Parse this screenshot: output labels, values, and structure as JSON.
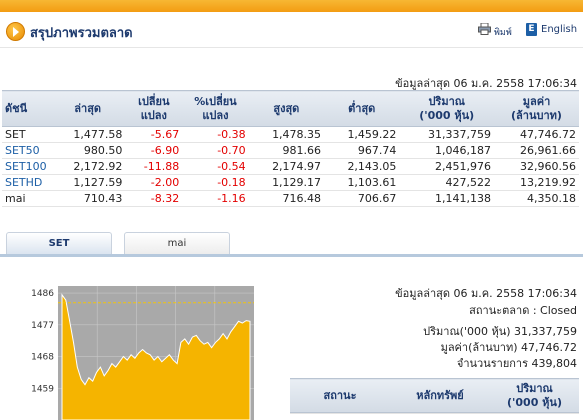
{
  "header": {
    "title": "สรุปภาพรวมตลาด",
    "print_label": "พิมพ์",
    "english_label": "English"
  },
  "summary": {
    "updated": "ข้อมูลล่าสุด 06 ม.ค. 2558 17:06:34",
    "columns": [
      "ดัชนี",
      "ล่าสุด",
      "เปลี่ยน\nแปลง",
      "%เปลี่ยน\nแปลง",
      "สูงสุด",
      "ต่ำสุด",
      "ปริมาณ\n('000 หุ้น)",
      "มูลค่า\n(ล้านบาท)"
    ],
    "rows": [
      {
        "index": "SET",
        "last": "1,477.58",
        "change": "-5.67",
        "pct": "-0.38",
        "high": "1,478.35",
        "low": "1,459.22",
        "volume": "31,337,759",
        "value": "47,746.72"
      },
      {
        "index": "SET50",
        "last": "980.50",
        "change": "-6.90",
        "pct": "-0.70",
        "high": "981.66",
        "low": "967.74",
        "volume": "1,046,187",
        "value": "26,961.66"
      },
      {
        "index": "SET100",
        "last": "2,172.92",
        "change": "-11.88",
        "pct": "-0.54",
        "high": "2,174.97",
        "low": "2,143.05",
        "volume": "2,451,976",
        "value": "32,960.56"
      },
      {
        "index": "SETHD",
        "last": "1,127.59",
        "change": "-2.00",
        "pct": "-0.18",
        "high": "1,129.17",
        "low": "1,103.61",
        "volume": "427,522",
        "value": "13,219.92"
      },
      {
        "index": "mai",
        "last": "710.43",
        "change": "-8.32",
        "pct": "-1.16",
        "high": "716.48",
        "low": "706.67",
        "volume": "1,141,138",
        "value": "4,350.18"
      }
    ]
  },
  "tabs": [
    {
      "label": "SET"
    },
    {
      "label": "mai"
    }
  ],
  "chart_data": {
    "type": "area",
    "title": "",
    "xlabel": "",
    "ylabel": "",
    "ylim": [
      1450,
      1488
    ],
    "yticks": [
      1459,
      1468,
      1477,
      1486
    ],
    "reference_line": 1483.25,
    "grid": true,
    "series": [
      {
        "values": [
          1485.5,
          1484.0,
          1478.0,
          1472.0,
          1465.0,
          1461.5,
          1460.0,
          1462.0,
          1461.0,
          1463.5,
          1465.0,
          1462.5,
          1464.0,
          1466.0,
          1465.0,
          1466.5,
          1468.0,
          1467.0,
          1468.5,
          1467.5,
          1469.0,
          1470.0,
          1469.0,
          1468.5,
          1467.0,
          1468.0,
          1466.5,
          1467.5,
          1468.5,
          1467.0,
          1466.0,
          1472.0,
          1473.0,
          1471.5,
          1473.5,
          1474.0,
          1472.5,
          1471.5,
          1472.0,
          1470.5,
          1472.0,
          1473.0,
          1474.5,
          1473.0,
          1475.0,
          1476.5,
          1478.0,
          1477.5,
          1478.2,
          1478.0
        ]
      }
    ]
  },
  "details": {
    "updated": "ข้อมูลล่าสุด 06 ม.ค. 2558 17:06:34",
    "market_status": "สถานะตลาด : Closed",
    "volume": "ปริมาณ('000 หุ้น) 31,337,759",
    "value": "มูลค่า(ล้านบาท) 47,746.72",
    "trades": "จำนวนรายการ 439,804"
  },
  "status_table": {
    "columns": [
      "สถานะ",
      "หลักทรัพย์",
      "ปริมาณ\n('000 หุ้น)"
    ]
  },
  "colors": {
    "accent": "#f39c12",
    "header_text": "#1d3a6e",
    "negative": "#e30000",
    "chart_fill": "#f5b400",
    "chart_bg": "#a9a9a9",
    "reference_line": "#f1c40f"
  }
}
